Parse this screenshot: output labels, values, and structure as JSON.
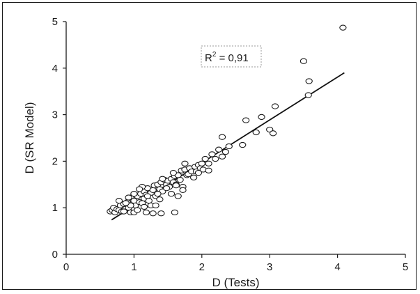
{
  "chart_data": {
    "type": "scatter",
    "title": "",
    "xlabel": "D (Tests)",
    "ylabel": "D (SR Model)",
    "xlim": [
      0,
      5
    ],
    "ylim": [
      0,
      5
    ],
    "x_ticks": [
      "0",
      "1",
      "2",
      "3",
      "4",
      "5"
    ],
    "y_ticks": [
      "0",
      "1",
      "2",
      "3",
      "4",
      "5"
    ],
    "grid": false,
    "marker": "open-circle",
    "annotation": {
      "base": "R",
      "sup": "2",
      "value": " = 0,91"
    },
    "trendline": {
      "x": [
        0.67,
        4.1
      ],
      "y": [
        0.74,
        3.9
      ]
    },
    "points": [
      [
        0.65,
        0.92
      ],
      [
        0.68,
        0.95
      ],
      [
        0.7,
        1.0
      ],
      [
        0.72,
        0.9
      ],
      [
        0.75,
        0.97
      ],
      [
        0.78,
        0.95
      ],
      [
        0.8,
        1.05
      ],
      [
        0.82,
        0.92
      ],
      [
        0.85,
        1.08
      ],
      [
        0.88,
        0.98
      ],
      [
        0.9,
        1.12
      ],
      [
        0.92,
        1.0
      ],
      [
        0.95,
        1.22
      ],
      [
        0.95,
        0.9
      ],
      [
        0.98,
        1.08
      ],
      [
        1.0,
        1.15
      ],
      [
        1.02,
        1.05
      ],
      [
        1.05,
        1.25
      ],
      [
        1.08,
        1.12
      ],
      [
        1.1,
        1.3
      ],
      [
        1.12,
        1.1
      ],
      [
        1.15,
        1.35
      ],
      [
        1.15,
        1.2
      ],
      [
        1.18,
        1.28
      ],
      [
        1.2,
        1.42
      ],
      [
        1.22,
        1.15
      ],
      [
        1.25,
        1.32
      ],
      [
        1.28,
        1.38
      ],
      [
        1.3,
        1.48
      ],
      [
        1.32,
        1.25
      ],
      [
        1.35,
        1.5
      ],
      [
        1.38,
        1.4
      ],
      [
        1.4,
        1.55
      ],
      [
        1.42,
        1.35
      ],
      [
        1.45,
        1.6
      ],
      [
        1.48,
        1.5
      ],
      [
        1.5,
        1.58
      ],
      [
        1.52,
        1.45
      ],
      [
        1.55,
        1.62
      ],
      [
        1.58,
        1.55
      ],
      [
        1.6,
        1.68
      ],
      [
        1.62,
        1.5
      ],
      [
        1.65,
        1.7
      ],
      [
        1.68,
        1.6
      ],
      [
        1.7,
        1.8
      ],
      [
        1.72,
        1.45
      ],
      [
        1.75,
        1.82
      ],
      [
        1.78,
        1.7
      ],
      [
        1.8,
        1.72
      ],
      [
        1.82,
        1.85
      ],
      [
        1.85,
        1.78
      ],
      [
        1.88,
        1.65
      ],
      [
        1.9,
        1.88
      ],
      [
        1.92,
        1.78
      ],
      [
        1.95,
        1.92
      ],
      [
        1.98,
        1.85
      ],
      [
        2.0,
        1.95
      ],
      [
        2.02,
        1.82
      ],
      [
        2.05,
        2.05
      ],
      [
        2.1,
        1.95
      ],
      [
        2.15,
        2.15
      ],
      [
        2.2,
        2.05
      ],
      [
        2.25,
        2.25
      ],
      [
        2.3,
        2.1
      ],
      [
        2.3,
        2.52
      ],
      [
        2.35,
        2.2
      ],
      [
        2.4,
        2.32
      ],
      [
        2.6,
        2.35
      ],
      [
        2.65,
        2.88
      ],
      [
        2.8,
        2.62
      ],
      [
        2.88,
        2.95
      ],
      [
        3.0,
        2.68
      ],
      [
        3.05,
        2.6
      ],
      [
        3.08,
        3.18
      ],
      [
        3.5,
        4.15
      ],
      [
        3.57,
        3.42
      ],
      [
        3.58,
        3.72
      ],
      [
        4.08,
        4.87
      ],
      [
        1.0,
        0.9
      ],
      [
        1.18,
        0.9
      ],
      [
        1.28,
        0.88
      ],
      [
        1.4,
        0.88
      ],
      [
        1.6,
        0.9
      ],
      [
        0.85,
        0.92
      ],
      [
        1.05,
        0.95
      ],
      [
        1.25,
        1.05
      ],
      [
        1.38,
        1.18
      ],
      [
        1.55,
        1.3
      ],
      [
        1.65,
        1.25
      ],
      [
        1.72,
        1.38
      ],
      [
        1.42,
        1.62
      ],
      [
        1.58,
        1.75
      ],
      [
        1.75,
        1.95
      ],
      [
        1.95,
        1.75
      ],
      [
        2.1,
        1.8
      ],
      [
        1.12,
        1.45
      ],
      [
        0.78,
        1.15
      ],
      [
        0.92,
        1.22
      ],
      [
        1.08,
        1.4
      ],
      [
        1.32,
        1.05
      ],
      [
        1.48,
        1.42
      ],
      [
        1.62,
        1.48
      ],
      [
        1.2,
        1.25
      ],
      [
        0.95,
        1.05
      ],
      [
        1.0,
        1.3
      ],
      [
        1.35,
        1.3
      ],
      [
        1.15,
        1.02
      ],
      [
        0.88,
        1.1
      ]
    ]
  }
}
